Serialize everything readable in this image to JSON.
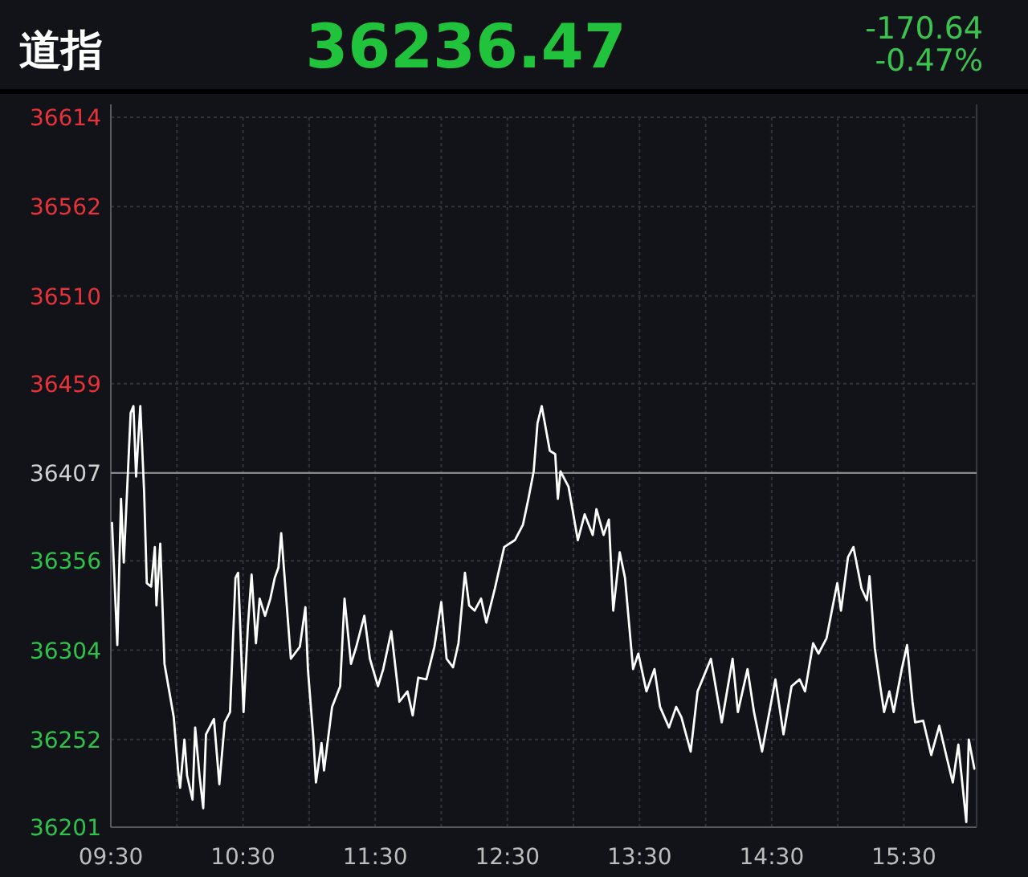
{
  "chart_data": {
    "type": "line",
    "title": "道指",
    "subtitle": "36236.47",
    "annotations": [
      "-170.64",
      "-0.47%"
    ],
    "color": "#ffffff",
    "grid": true,
    "marker": "none",
    "line_style": "solid",
    "xlim": [
      9.5,
      16.05
    ],
    "ylim": [
      36201,
      36614
    ],
    "xticks": [
      {
        "value": 9.5,
        "label": "09:30"
      },
      {
        "value": 10,
        "label": null
      },
      {
        "value": 10.5,
        "label": "10:30"
      },
      {
        "value": 11,
        "label": null
      },
      {
        "value": 11.5,
        "label": "11:30"
      },
      {
        "value": 12,
        "label": null
      },
      {
        "value": 12.5,
        "label": "12:30"
      },
      {
        "value": 13,
        "label": null
      },
      {
        "value": 13.5,
        "label": "13:30"
      },
      {
        "value": 14,
        "label": null
      },
      {
        "value": 14.5,
        "label": "14:30"
      },
      {
        "value": 15,
        "label": null
      },
      {
        "value": 15.5,
        "label": "15:30"
      }
    ],
    "yticks": [
      36201,
      36252,
      36304,
      36356,
      36407,
      36459,
      36510,
      36562,
      36614
    ],
    "ref_lines": [
      {
        "axis": "y",
        "value": 36407.11,
        "color": "#8a8a8a"
      }
    ],
    "x": [
      9.509,
      9.549,
      9.577,
      9.598,
      9.65,
      9.671,
      9.691,
      9.723,
      9.752,
      9.772,
      9.805,
      9.833,
      9.845,
      9.874,
      9.906,
      9.976,
      10.009,
      10.024,
      10.057,
      10.077,
      10.118,
      10.138,
      10.171,
      10.199,
      10.22,
      10.28,
      10.321,
      10.362,
      10.402,
      10.443,
      10.463,
      10.504,
      10.537,
      10.565,
      10.598,
      10.626,
      10.667,
      10.707,
      10.74,
      10.768,
      10.789,
      10.821,
      10.862,
      10.93,
      10.972,
      10.991,
      11.033,
      11.052,
      11.094,
      11.113,
      11.174,
      11.235,
      11.268,
      11.317,
      11.357,
      11.418,
      11.46,
      11.521,
      11.561,
      11.622,
      11.683,
      11.744,
      11.784,
      11.826,
      11.887,
      11.948,
      12.0,
      12.04,
      12.089,
      12.13,
      12.179,
      12.211,
      12.252,
      12.301,
      12.341,
      12.406,
      12.476,
      12.557,
      12.618,
      12.659,
      12.699,
      12.728,
      12.76,
      12.821,
      12.862,
      12.882,
      12.902,
      12.963,
      13.033,
      13.085,
      13.146,
      13.174,
      13.228,
      13.268,
      13.301,
      13.35,
      13.39,
      13.451,
      13.491,
      13.552,
      13.613,
      13.655,
      13.723,
      13.777,
      13.817,
      13.887,
      13.939,
      14.04,
      14.122,
      14.204,
      14.244,
      14.317,
      14.366,
      14.427,
      14.528,
      14.589,
      14.65,
      14.711,
      14.752,
      14.813,
      14.854,
      14.915,
      14.955,
      14.996,
      15.024,
      15.077,
      15.118,
      15.179,
      15.22,
      15.24,
      15.28,
      15.321,
      15.35,
      15.39,
      15.423,
      15.484,
      15.524,
      15.565,
      15.585,
      15.646,
      15.707,
      15.768,
      15.829,
      15.87,
      15.912,
      15.972,
      15.991,
      16.033
    ],
    "values": [
      36378,
      36307,
      36392,
      36355,
      36442,
      36446,
      36405,
      36446,
      36396,
      36343,
      36341,
      36364,
      36330,
      36366,
      36296,
      36265,
      36234,
      36224,
      36252,
      36231,
      36217,
      36259,
      36231,
      36212,
      36255,
      36264,
      36226,
      36262,
      36268,
      36346,
      36349,
      36268,
      36318,
      36348,
      36308,
      36334,
      36324,
      36334,
      36346,
      36352,
      36372,
      36340,
      36299,
      36306,
      36329,
      36293,
      36252,
      36227,
      36250,
      36234,
      36271,
      36283,
      36334,
      36296,
      36306,
      36324,
      36299,
      36283,
      36293,
      36315,
      36274,
      36280,
      36266,
      36288,
      36287,
      36306,
      36332,
      36299,
      36294,
      36308,
      36349,
      36330,
      36327,
      36334,
      36320,
      36340,
      36364,
      36368,
      36377,
      36392,
      36408,
      36436,
      36446,
      36420,
      36418,
      36392,
      36408,
      36399,
      36368,
      36383,
      36371,
      36386,
      36371,
      36380,
      36327,
      36361,
      36346,
      36293,
      36302,
      36280,
      36293,
      36271,
      36259,
      36271,
      36265,
      36245,
      36280,
      36299,
      36262,
      36299,
      36268,
      36293,
      36268,
      36245,
      36287,
      36255,
      36283,
      36287,
      36280,
      36308,
      36302,
      36311,
      36327,
      36343,
      36327,
      36358,
      36364,
      36340,
      36333,
      36347,
      36305,
      36283,
      36268,
      36280,
      36268,
      36293,
      36307,
      36274,
      36262,
      36263,
      36243,
      36260,
      36240,
      36227,
      36249,
      36204,
      36252,
      36235
    ]
  }
}
